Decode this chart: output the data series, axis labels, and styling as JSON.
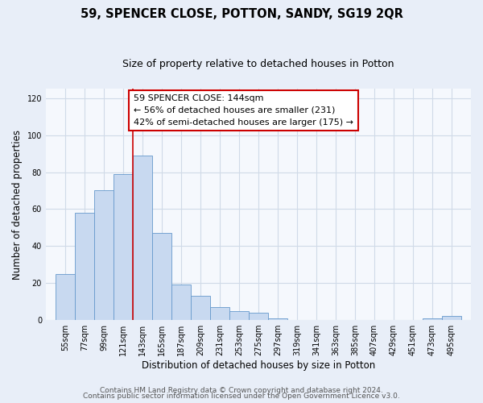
{
  "title": "59, SPENCER CLOSE, POTTON, SANDY, SG19 2QR",
  "subtitle": "Size of property relative to detached houses in Potton",
  "xlabel": "Distribution of detached houses by size in Potton",
  "ylabel": "Number of detached properties",
  "bin_left_edges": [
    55,
    77,
    99,
    121,
    143,
    165,
    187,
    209,
    231,
    253,
    275,
    297,
    319,
    341,
    363,
    385,
    407,
    429,
    451,
    473,
    495
  ],
  "bar_heights": [
    25,
    58,
    70,
    79,
    89,
    47,
    19,
    13,
    7,
    5,
    4,
    1,
    0,
    0,
    0,
    0,
    0,
    0,
    0,
    1,
    2
  ],
  "bar_color": "#c8d9f0",
  "bar_edge_color": "#6699cc",
  "reference_line_x": 143,
  "reference_line_color": "#cc0000",
  "annotation_text": "59 SPENCER CLOSE: 144sqm\n← 56% of detached houses are smaller (231)\n42% of semi-detached houses are larger (175) →",
  "annotation_box_facecolor": "#ffffff",
  "annotation_box_edgecolor": "#cc0000",
  "ylim": [
    0,
    125
  ],
  "yticks": [
    0,
    20,
    40,
    60,
    80,
    100,
    120
  ],
  "footer_line1": "Contains HM Land Registry data © Crown copyright and database right 2024.",
  "footer_line2": "Contains public sector information licensed under the Open Government Licence v3.0.",
  "plot_bg_color": "#f5f8fd",
  "fig_bg_color": "#e8eef8",
  "grid_color": "#d0dae8",
  "title_fontsize": 10.5,
  "subtitle_fontsize": 9,
  "axis_label_fontsize": 8.5,
  "tick_fontsize": 7,
  "annotation_fontsize": 8,
  "footer_fontsize": 6.5
}
